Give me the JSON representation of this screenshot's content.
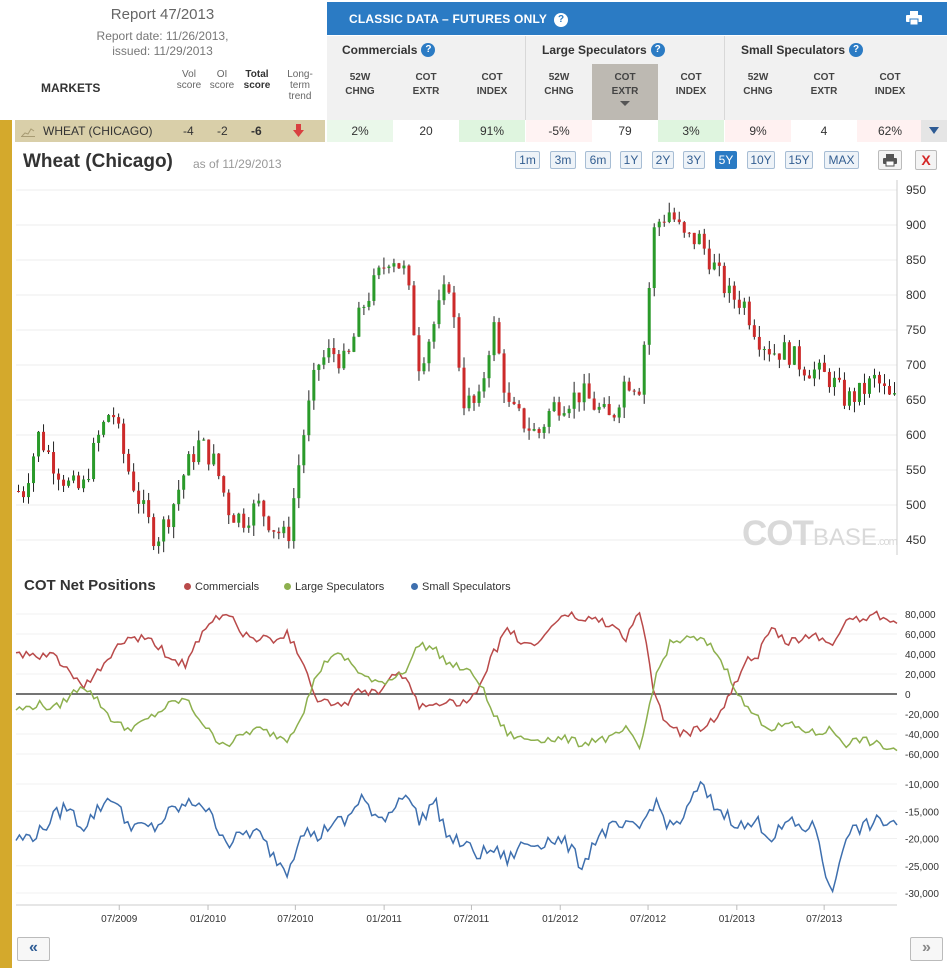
{
  "report": {
    "title": "Report 47/2013",
    "date_line1": "Report date: 11/26/2013,",
    "date_line2": "issued: 11/29/2013",
    "markets_label": "MARKETS",
    "columns": [
      {
        "l1": "Vol",
        "l2": "score"
      },
      {
        "l1": "OI",
        "l2": "score"
      },
      {
        "l1": "Total",
        "l2": "score"
      },
      {
        "l1": "Long-",
        "l2": "term",
        "l3": "trend"
      }
    ]
  },
  "panel": {
    "title": "CLASSIC DATA – FUTURES ONLY",
    "help": "?",
    "groups": [
      "Commercials",
      "Large Speculators",
      "Small Speculators"
    ],
    "sub_cols": [
      {
        "l1": "52W",
        "l2": "CHNG"
      },
      {
        "l1": "COT",
        "l2": "EXTR"
      },
      {
        "l1": "COT",
        "l2": "INDEX"
      }
    ]
  },
  "row": {
    "market": "WHEAT (CHICAGO)",
    "vol": "-4",
    "oi": "-2",
    "total": "-6",
    "values": [
      "2%",
      "20",
      "91%",
      "-5%",
      "79",
      "3%",
      "9%",
      "4",
      "62%"
    ],
    "cell_colors": [
      "#eaf8ea",
      "#ffffff",
      "#dff5df",
      "#fff3f3",
      "#ffffff",
      "#dff5df",
      "#fff1f1",
      "#ffffff",
      "#fff1f1"
    ]
  },
  "chart_header": {
    "title": "Wheat (Chicago)",
    "as_of": "as of 11/29/2013",
    "ranges": [
      "1m",
      "3m",
      "6m",
      "1Y",
      "2Y",
      "3Y",
      "5Y",
      "10Y",
      "15Y",
      "MAX"
    ],
    "selected_range": "5Y",
    "close": "X"
  },
  "watermark": {
    "main": "COT",
    "sub": "BASE",
    "suffix": ".com"
  },
  "cot_section": {
    "title": "COT Net Positions",
    "legend": [
      {
        "name": "Commercials",
        "color": "#b94a4a"
      },
      {
        "name": "Large Speculators",
        "color": "#8db04e"
      },
      {
        "name": "Small Speculators",
        "color": "#3e6fae"
      }
    ]
  },
  "nav": {
    "prev": "«",
    "next": "»"
  },
  "colors": {
    "up": "#2a9a2a",
    "down": "#cc2a2a",
    "accent": "#2b7bc4",
    "gold": "#d4a92c"
  },
  "chart_data": [
    {
      "type": "line",
      "name": "price",
      "x_range": [
        "2008-11-29",
        "2013-11-29"
      ],
      "ylim": [
        420,
        960
      ],
      "yticks": [
        450,
        500,
        550,
        600,
        650,
        700,
        750,
        800,
        850,
        900,
        950
      ],
      "x": [
        "2008-12",
        "2009-01",
        "2009-02",
        "2009-03",
        "2009-04",
        "2009-05",
        "2009-06",
        "2009-07",
        "2009-08",
        "2009-09",
        "2009-10",
        "2009-11",
        "2009-12",
        "2010-01",
        "2010-02",
        "2010-03",
        "2010-04",
        "2010-05",
        "2010-06",
        "2010-07",
        "2010-08",
        "2010-09",
        "2010-10",
        "2010-11",
        "2010-12",
        "2011-01",
        "2011-02",
        "2011-03",
        "2011-04",
        "2011-05",
        "2011-06",
        "2011-07",
        "2011-08",
        "2011-09",
        "2011-10",
        "2011-11",
        "2011-12",
        "2012-01",
        "2012-02",
        "2012-03",
        "2012-04",
        "2012-05",
        "2012-06",
        "2012-07",
        "2012-08",
        "2012-09",
        "2012-10",
        "2012-11",
        "2012-12",
        "2013-01",
        "2013-02",
        "2013-03",
        "2013-04",
        "2013-05",
        "2013-06",
        "2013-07",
        "2013-08",
        "2013-09",
        "2013-10",
        "2013-11"
      ],
      "values": [
        520,
        600,
        560,
        530,
        520,
        590,
        640,
        560,
        500,
        450,
        490,
        550,
        590,
        560,
        490,
        480,
        500,
        470,
        450,
        590,
        700,
        720,
        700,
        780,
        820,
        860,
        830,
        700,
        760,
        820,
        650,
        640,
        760,
        640,
        620,
        600,
        640,
        650,
        660,
        640,
        620,
        680,
        670,
        900,
        920,
        880,
        880,
        840,
        800,
        790,
        740,
        720,
        720,
        700,
        690,
        680,
        650,
        660,
        680,
        650
      ]
    },
    {
      "type": "line",
      "name": "cot",
      "x_range": [
        "2008-11-29",
        "2013-11-29"
      ],
      "ylim_top": [
        -62000,
        85000
      ],
      "yticks_top": [
        80000,
        60000,
        40000,
        20000,
        0,
        -20000,
        -40000,
        -60000
      ],
      "ylim_bottom": [
        -32000,
        -8000
      ],
      "yticks_bottom": [
        -10000,
        -15000,
        -20000,
        -25000,
        -30000
      ],
      "x": [
        "2008-12",
        "2009-01",
        "2009-02",
        "2009-03",
        "2009-04",
        "2009-05",
        "2009-06",
        "2009-07",
        "2009-08",
        "2009-09",
        "2009-10",
        "2009-11",
        "2009-12",
        "2010-01",
        "2010-02",
        "2010-03",
        "2010-04",
        "2010-05",
        "2010-06",
        "2010-07",
        "2010-08",
        "2010-09",
        "2010-10",
        "2010-11",
        "2010-12",
        "2011-01",
        "2011-02",
        "2011-03",
        "2011-04",
        "2011-05",
        "2011-06",
        "2011-07",
        "2011-08",
        "2011-09",
        "2011-10",
        "2011-11",
        "2011-12",
        "2012-01",
        "2012-02",
        "2012-03",
        "2012-04",
        "2012-05",
        "2012-06",
        "2012-07",
        "2012-08",
        "2012-09",
        "2012-10",
        "2012-11",
        "2012-12",
        "2013-01",
        "2013-02",
        "2013-03",
        "2013-04",
        "2013-05",
        "2013-06",
        "2013-07",
        "2013-08",
        "2013-09",
        "2013-10",
        "2013-11"
      ],
      "series": [
        {
          "name": "Commercials",
          "values": [
            40000,
            35000,
            40000,
            25000,
            5000,
            20000,
            40000,
            55000,
            55000,
            50000,
            35000,
            30000,
            55000,
            75000,
            80000,
            60000,
            55000,
            55000,
            60000,
            35000,
            -5000,
            -10000,
            -10000,
            5000,
            0,
            15000,
            20000,
            -15000,
            -10000,
            -5000,
            -10000,
            0,
            40000,
            65000,
            50000,
            50000,
            70000,
            80000,
            75000,
            75000,
            70000,
            55000,
            85000,
            -5000,
            -35000,
            -40000,
            -35000,
            -25000,
            -5000,
            30000,
            40000,
            65000,
            50000,
            55000,
            60000,
            45000,
            75000,
            75000,
            80000,
            75000
          ]
        },
        {
          "name": "Large Speculators",
          "values": [
            -15000,
            -10000,
            -15000,
            -5000,
            10000,
            -5000,
            -25000,
            -35000,
            -30000,
            -20000,
            -10000,
            -5000,
            -25000,
            -45000,
            -50000,
            -40000,
            -35000,
            -40000,
            -45000,
            -20000,
            20000,
            40000,
            35000,
            20000,
            10000,
            15000,
            25000,
            50000,
            45000,
            30000,
            25000,
            15000,
            -20000,
            -40000,
            -45000,
            -45000,
            -45000,
            -45000,
            -50000,
            -45000,
            -45000,
            -35000,
            -55000,
            15000,
            50000,
            55000,
            55000,
            45000,
            20000,
            -10000,
            -25000,
            -35000,
            -30000,
            -35000,
            -40000,
            -35000,
            -50000,
            -45000,
            -50000,
            -55000
          ]
        },
        {
          "name": "Small Speculators",
          "values": [
            -20000,
            -19000,
            -16000,
            -14000,
            -18000,
            -15000,
            -12000,
            -17000,
            -18000,
            -18000,
            -15000,
            -14000,
            -13000,
            -17000,
            -21000,
            -19000,
            -19000,
            -23000,
            -26000,
            -18000,
            -20000,
            -17000,
            -17000,
            -12000,
            -17000,
            -15000,
            -11000,
            -17000,
            -13000,
            -20000,
            -21000,
            -23000,
            -22000,
            -24000,
            -21000,
            -21000,
            -20000,
            -21000,
            -25000,
            -20000,
            -18000,
            -18000,
            -18000,
            -13000,
            -18000,
            -16000,
            -10000,
            -14000,
            -16000,
            -18000,
            -17000,
            -20000,
            -17000,
            -18000,
            -18000,
            -31000,
            -19000,
            -18000,
            -17000,
            -17000
          ]
        }
      ],
      "x_tick_labels": [
        "07/2009",
        "01/2010",
        "07/2010",
        "01/2011",
        "07/2011",
        "01/2012",
        "07/2012",
        "01/2013",
        "07/2013"
      ]
    }
  ]
}
